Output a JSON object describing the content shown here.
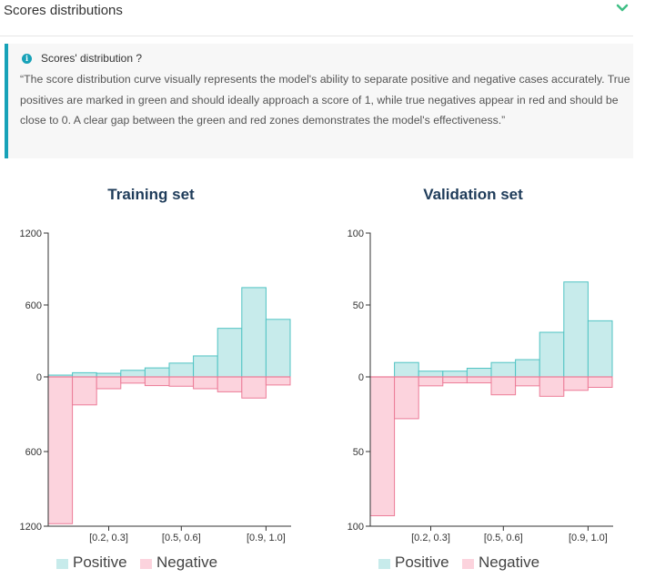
{
  "section": {
    "title": "Scores distributions",
    "chevron_icon": "chevron-down-icon"
  },
  "info": {
    "icon": "info-icon",
    "title": "Scores' distribution ?",
    "text": "“The score distribution curve visually represents the model's ability to separate positive and negative cases accurately. True positives are marked in green and should ideally approach a score of 1, while true negatives appear in red and should be close to 0. A clear gap between the green and red zones demonstrates the model's effectiveness.”"
  },
  "colors": {
    "positive_fill": "#c7ebeb",
    "positive_stroke": "#4fc3c3",
    "negative_fill": "#fcd3dd",
    "negative_stroke": "#ec7c98",
    "accent": "#17a2b8",
    "chevron": "#3fbf85",
    "title": "#1f3c5a"
  },
  "legend": {
    "positive": "Positive",
    "negative": "Negative"
  },
  "chart_data": [
    {
      "type": "bar",
      "title": "Training set",
      "bins": [
        "[0.0, 0.1)",
        "[0.1, 0.2)",
        "[0.2, 0.3)",
        "[0.3, 0.4)",
        "[0.4, 0.5)",
        "[0.5, 0.6)",
        "[0.6, 0.7)",
        "[0.7, 0.8)",
        "[0.8, 0.9)",
        "[0.9, 1.0]"
      ],
      "tick_labels": [
        "[0.2, 0.3]",
        "[0.5, 0.6]",
        "[0.9, 1.0]"
      ],
      "tick_bins": [
        2.5,
        5.5,
        9
      ],
      "y_ticks_top": [
        "1200",
        "600",
        "0"
      ],
      "y_ticks_bottom": [
        "600",
        "1200"
      ],
      "ylim": [
        0,
        1200
      ],
      "series": [
        {
          "name": "Positive",
          "values": [
            15,
            35,
            30,
            55,
            75,
            115,
            175,
            405,
            745,
            480
          ]
        },
        {
          "name": "Negative",
          "values": [
            1180,
            225,
            95,
            50,
            70,
            75,
            95,
            120,
            170,
            65
          ]
        }
      ]
    },
    {
      "type": "bar",
      "title": "Validation set",
      "bins": [
        "[0.0, 0.1)",
        "[0.1, 0.2)",
        "[0.2, 0.3)",
        "[0.3, 0.4)",
        "[0.4, 0.5)",
        "[0.5, 0.6)",
        "[0.6, 0.7)",
        "[0.7, 0.8)",
        "[0.8, 0.9)",
        "[0.9, 1.0]"
      ],
      "tick_labels": [
        "[0.2, 0.3]",
        "[0.5, 0.6]",
        "[0.9, 1.0]"
      ],
      "tick_bins": [
        2.5,
        5.5,
        9
      ],
      "y_ticks_top": [
        "100",
        "50",
        "0"
      ],
      "y_ticks_bottom": [
        "50",
        "100"
      ],
      "ylim": [
        0,
        100
      ],
      "series": [
        {
          "name": "Positive",
          "values": [
            0,
            10,
            4,
            4,
            6,
            10,
            12,
            31,
            66,
            39
          ]
        },
        {
          "name": "Negative",
          "values": [
            93,
            28,
            6,
            4,
            4,
            12,
            6,
            13,
            9,
            7
          ]
        }
      ]
    }
  ]
}
